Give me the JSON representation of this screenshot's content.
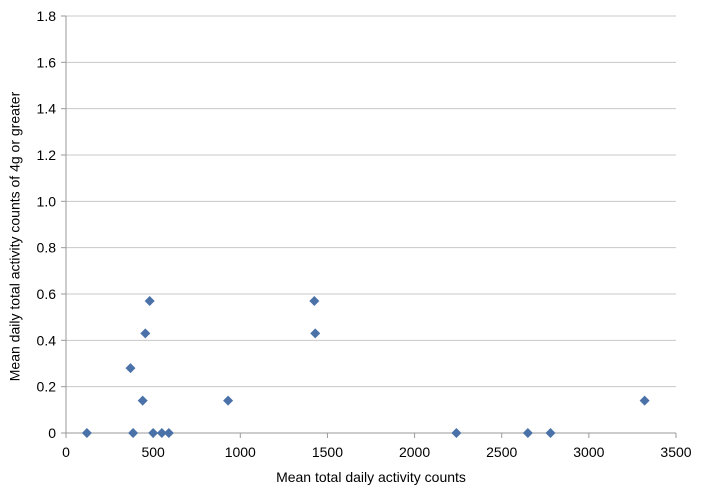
{
  "chart_data": {
    "type": "scatter",
    "xlabel": "Mean total daily activity counts",
    "ylabel": "Mean daily total activity counts of 4g or greater",
    "xlim": [
      0,
      3500
    ],
    "ylim": [
      0,
      1.8
    ],
    "x_ticks": [
      "0",
      "500",
      "1000",
      "1500",
      "2000",
      "2500",
      "3000",
      "3500"
    ],
    "y_ticks": [
      "0",
      "0.2",
      "0.4",
      "0.6",
      "0.8",
      "1.0",
      "1.2",
      "1.4",
      "1.6",
      "1.8"
    ],
    "x_tick_values": [
      0,
      500,
      1000,
      1500,
      2000,
      2500,
      3000,
      3500
    ],
    "y_tick_values": [
      0,
      0.2,
      0.4,
      0.6,
      0.8,
      1.0,
      1.2,
      1.4,
      1.6,
      1.8
    ],
    "grid": "horizontal",
    "legend": "none",
    "marker": "diamond",
    "marker_color": "#4a72a8",
    "gridline_color": "#c8c8c8",
    "series": [
      {
        "points": [
          {
            "x": 120,
            "y": 0
          },
          {
            "x": 370,
            "y": 0.28
          },
          {
            "x": 385,
            "y": 0
          },
          {
            "x": 440,
            "y": 0.14
          },
          {
            "x": 455,
            "y": 0.43
          },
          {
            "x": 480,
            "y": 0.57
          },
          {
            "x": 500,
            "y": 0
          },
          {
            "x": 550,
            "y": 0
          },
          {
            "x": 590,
            "y": 0
          },
          {
            "x": 930,
            "y": 0.14
          },
          {
            "x": 1425,
            "y": 0.57
          },
          {
            "x": 1430,
            "y": 0.43
          },
          {
            "x": 2240,
            "y": 0
          },
          {
            "x": 2650,
            "y": 0
          },
          {
            "x": 2780,
            "y": 0
          },
          {
            "x": 3320,
            "y": 0.14
          }
        ]
      }
    ]
  }
}
